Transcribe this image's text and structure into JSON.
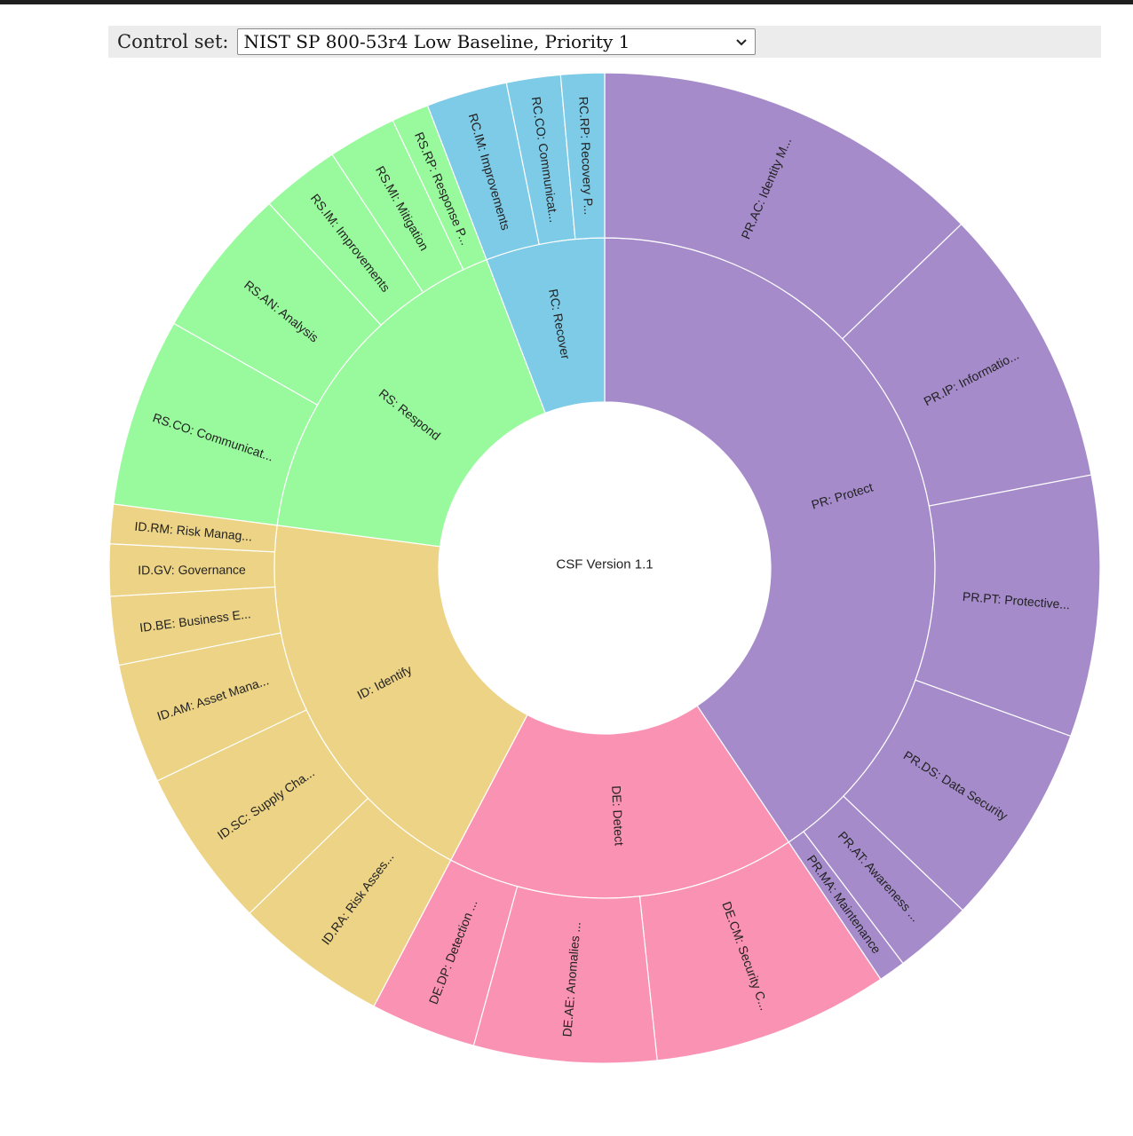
{
  "control": {
    "label": "Control set:",
    "selected": "NIST SP 800-53r4 Low Baseline, Priority 1"
  },
  "icons": {
    "dropdown": "chevron-down-icon"
  },
  "chart_data": {
    "type": "sunburst",
    "center_label": "CSF Version 1.1",
    "start_angle_deg": 0,
    "functions": [
      {
        "name": "PR: Protect",
        "color": "#a68bcb",
        "children": [
          {
            "name": "PR.AC: Identity M...",
            "value": 18.9
          },
          {
            "name": "PR.IP: Informatio...",
            "value": 13.6
          },
          {
            "name": "PR.PT: Protective...",
            "value": 12.6
          },
          {
            "name": "PR.DS: Data Security",
            "value": 9.8
          },
          {
            "name": "PR.AT: Awareness ...",
            "value": 3.8
          },
          {
            "name": "PR.MA: Maintenance",
            "value": 1.3
          }
        ]
      },
      {
        "name": "DE: Detect",
        "color": "#fa92b4",
        "children": [
          {
            "name": "DE.CM: Security C...",
            "value": 11.4
          },
          {
            "name": "DE.AE: Anomalies ...",
            "value": 8.8
          },
          {
            "name": "DE.DP: Detection ...",
            "value": 5.1
          }
        ]
      },
      {
        "name": "ID: Identify",
        "color": "#ecd385",
        "children": [
          {
            "name": "ID.RA: Risk Asses...",
            "value": 7.4
          },
          {
            "name": "ID.SC: Supply Cha...",
            "value": 7.7
          },
          {
            "name": "ID.AM: Asset Mana...",
            "value": 5.8
          },
          {
            "name": "ID.BE: Business E...",
            "value": 3.3
          },
          {
            "name": "ID.GV: Governance",
            "value": 2.5
          },
          {
            "name": "ID.RM: Risk Manag...",
            "value": 1.9
          }
        ]
      },
      {
        "name": "RS: Respond",
        "color": "#98fa9d",
        "children": [
          {
            "name": "RS.CO: Communicat...",
            "value": 9.1
          },
          {
            "name": "RS.AN: Analysis",
            "value": 7.3
          },
          {
            "name": "RS.IM: Improvements",
            "value": 3.8
          },
          {
            "name": "RS.MI: Mitigation",
            "value": 3.3
          },
          {
            "name": "RS.RP: Response P...",
            "value": 1.8
          }
        ]
      },
      {
        "name": "RC: Recover",
        "color": "#7ecbe8",
        "children": [
          {
            "name": "RC.IM: Improvements",
            "value": 3.9
          },
          {
            "name": "RC.CO: Communicat...",
            "value": 2.6
          },
          {
            "name": "RC.RP: Recovery P...",
            "value": 2.1
          }
        ]
      }
    ]
  }
}
